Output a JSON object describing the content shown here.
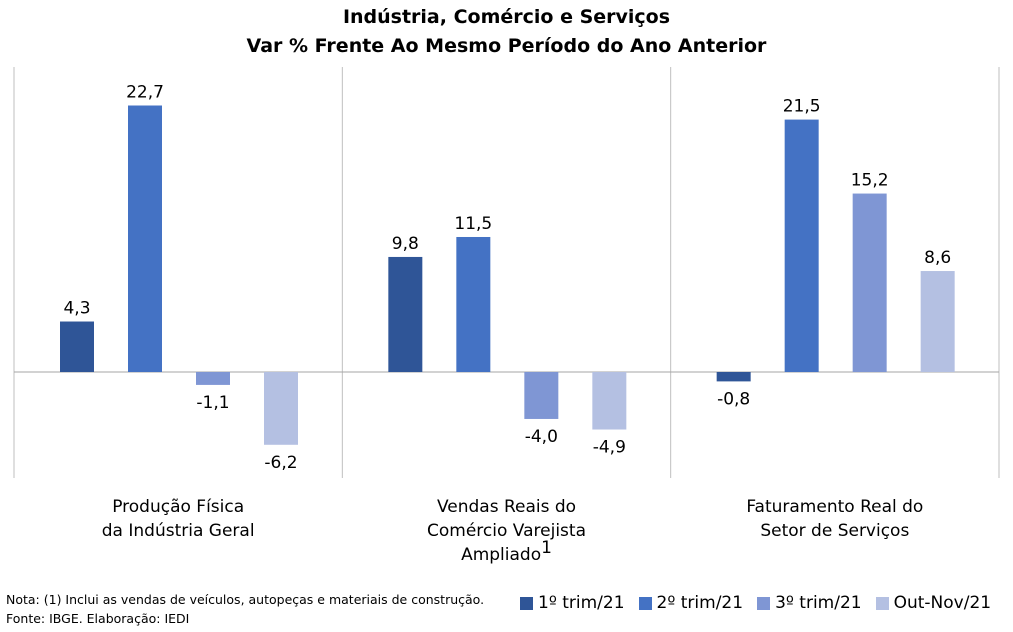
{
  "chart_data": {
    "type": "bar",
    "title": "Indústria, Comércio e Serviços",
    "subtitle": "Var % Frente Ao Mesmo Período do Ano Anterior",
    "categories": [
      {
        "lines": [
          "Produção Física",
          "da Indústria Geral"
        ],
        "sup": ""
      },
      {
        "lines": [
          "Vendas Reais do",
          "Comércio Varejista",
          "Ampliado"
        ],
        "sup": "1"
      },
      {
        "lines": [
          "Faturamento Real do",
          "Setor de Serviços"
        ],
        "sup": ""
      }
    ],
    "series": [
      {
        "name": "1º trim/21",
        "color": "#2f5597",
        "values": [
          4.3,
          9.8,
          -0.8
        ]
      },
      {
        "name": "2º trim/21",
        "color": "#4472c4",
        "values": [
          22.7,
          11.5,
          21.5
        ]
      },
      {
        "name": "3º trim/21",
        "color": "#7f96d4",
        "values": [
          -1.1,
          -4.0,
          15.2
        ]
      },
      {
        "name": "Out-Nov/21",
        "color": "#b4c0e2",
        "values": [
          -6.2,
          -4.9,
          8.6
        ]
      }
    ],
    "data_labels": [
      [
        "4,3",
        "9,8",
        "-0,8"
      ],
      [
        "22,7",
        "11,5",
        "21,5"
      ],
      [
        "-1,1",
        "-4,0",
        "15,2"
      ],
      [
        "-6,2",
        "-4,9",
        "8,6"
      ]
    ],
    "ylim": [
      -7.5,
      24
    ],
    "grid": false,
    "legend_position": "bottom-right"
  },
  "notes": {
    "nota": "Nota: (1) Inclui as vendas de veículos, autopeças e materiais de construção.",
    "fonte": "Fonte: IBGE. Elaboração: IEDI"
  }
}
